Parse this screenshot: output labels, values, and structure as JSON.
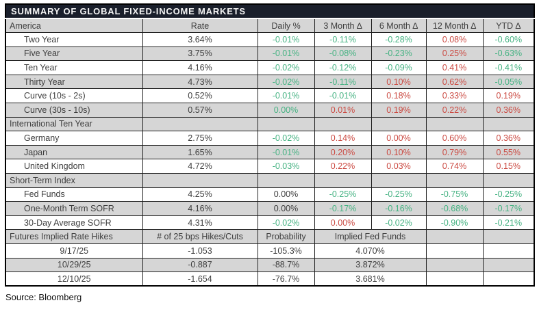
{
  "title": "SUMMARY OF GLOBAL FIXED-INCOME MARKETS",
  "source": "Source: Bloomberg",
  "colors": {
    "positive_change_red": "#CB4A42",
    "negative_change_green": "#45B282",
    "title_bar_bg": "#1A1F2B",
    "row_stripe_gray": "#D6D6D6",
    "body_text": "#3D3D3D"
  },
  "chart_data": [
    {
      "type": "table",
      "title": "SUMMARY OF GLOBAL FIXED-INCOME MARKETS",
      "columns": [
        "America",
        "Rate",
        "Daily %",
        "3 Month ∆",
        "6 Month ∆",
        "12 Month ∆",
        "YTD ∆"
      ],
      "rows": [
        {
          "label": "Two Year",
          "values": [
            "3.64%",
            "-0.01%",
            "-0.11%",
            "-0.28%",
            "0.08%",
            "-0.60%"
          ],
          "colors": [
            "k",
            "g",
            "g",
            "g",
            "r",
            "g"
          ]
        },
        {
          "label": "Five Year",
          "values": [
            "3.75%",
            "-0.01%",
            "-0.08%",
            "-0.23%",
            "0.25%",
            "-0.63%"
          ],
          "colors": [
            "k",
            "g",
            "g",
            "g",
            "r",
            "g"
          ]
        },
        {
          "label": "Ten Year",
          "values": [
            "4.16%",
            "-0.02%",
            "-0.12%",
            "-0.09%",
            "0.41%",
            "-0.41%"
          ],
          "colors": [
            "k",
            "g",
            "g",
            "g",
            "r",
            "g"
          ]
        },
        {
          "label": "Thirty Year",
          "values": [
            "4.73%",
            "-0.02%",
            "-0.11%",
            "0.10%",
            "0.62%",
            "-0.05%"
          ],
          "colors": [
            "k",
            "g",
            "g",
            "r",
            "r",
            "g"
          ]
        },
        {
          "label": "Curve (10s - 2s)",
          "values": [
            "0.52%",
            "-0.01%",
            "-0.01%",
            "0.18%",
            "0.33%",
            "0.19%"
          ],
          "colors": [
            "k",
            "g",
            "g",
            "r",
            "r",
            "r"
          ]
        },
        {
          "label": "Curve (30s - 10s)",
          "values": [
            "0.57%",
            "0.00%",
            "0.01%",
            "0.19%",
            "0.22%",
            "0.36%"
          ],
          "colors": [
            "k",
            "g",
            "r",
            "r",
            "r",
            "r"
          ]
        },
        {
          "section": "International Ten Year"
        },
        {
          "label": "Germany",
          "values": [
            "2.75%",
            "-0.02%",
            "0.14%",
            "0.00%",
            "0.60%",
            "0.36%"
          ],
          "colors": [
            "k",
            "g",
            "r",
            "r",
            "r",
            "r"
          ]
        },
        {
          "label": "Japan",
          "values": [
            "1.65%",
            "-0.01%",
            "0.20%",
            "0.10%",
            "0.79%",
            "0.55%"
          ],
          "colors": [
            "k",
            "g",
            "r",
            "r",
            "r",
            "r"
          ]
        },
        {
          "label": "United Kingdom",
          "values": [
            "4.72%",
            "-0.03%",
            "0.22%",
            "0.03%",
            "0.74%",
            "0.15%"
          ],
          "colors": [
            "k",
            "g",
            "r",
            "r",
            "r",
            "r"
          ]
        },
        {
          "section": "Short-Term Index"
        },
        {
          "label": "Fed Funds",
          "values": [
            "4.25%",
            "0.00%",
            "-0.25%",
            "-0.25%",
            "-0.75%",
            "-0.25%"
          ],
          "colors": [
            "k",
            "k",
            "g",
            "g",
            "g",
            "g"
          ]
        },
        {
          "label": "One-Month Term SOFR",
          "values": [
            "4.16%",
            "0.00%",
            "-0.17%",
            "-0.16%",
            "-0.68%",
            "-0.17%"
          ],
          "colors": [
            "k",
            "k",
            "g",
            "g",
            "g",
            "g"
          ]
        },
        {
          "label": "30-Day Average SOFR",
          "values": [
            "4.31%",
            "-0.02%",
            "0.00%",
            "-0.02%",
            "-0.90%",
            "-0.21%"
          ],
          "colors": [
            "k",
            "g",
            "r",
            "g",
            "g",
            "g"
          ]
        }
      ]
    },
    {
      "type": "table",
      "columns": [
        "Futures Implied Rate Hikes",
        "# of 25 bps Hikes/Cuts",
        "Probability",
        "Implied Fed Funds"
      ],
      "rows": [
        {
          "date": "9/17/25",
          "hikes": "-1.053",
          "probability": "-105.3%",
          "implied": "4.070%"
        },
        {
          "date": "10/29/25",
          "hikes": "-0.887",
          "probability": "-88.7%",
          "implied": "3.872%"
        },
        {
          "date": "12/10/25",
          "hikes": "-1.654",
          "probability": "-76.7%",
          "implied": "3.681%"
        }
      ]
    }
  ]
}
